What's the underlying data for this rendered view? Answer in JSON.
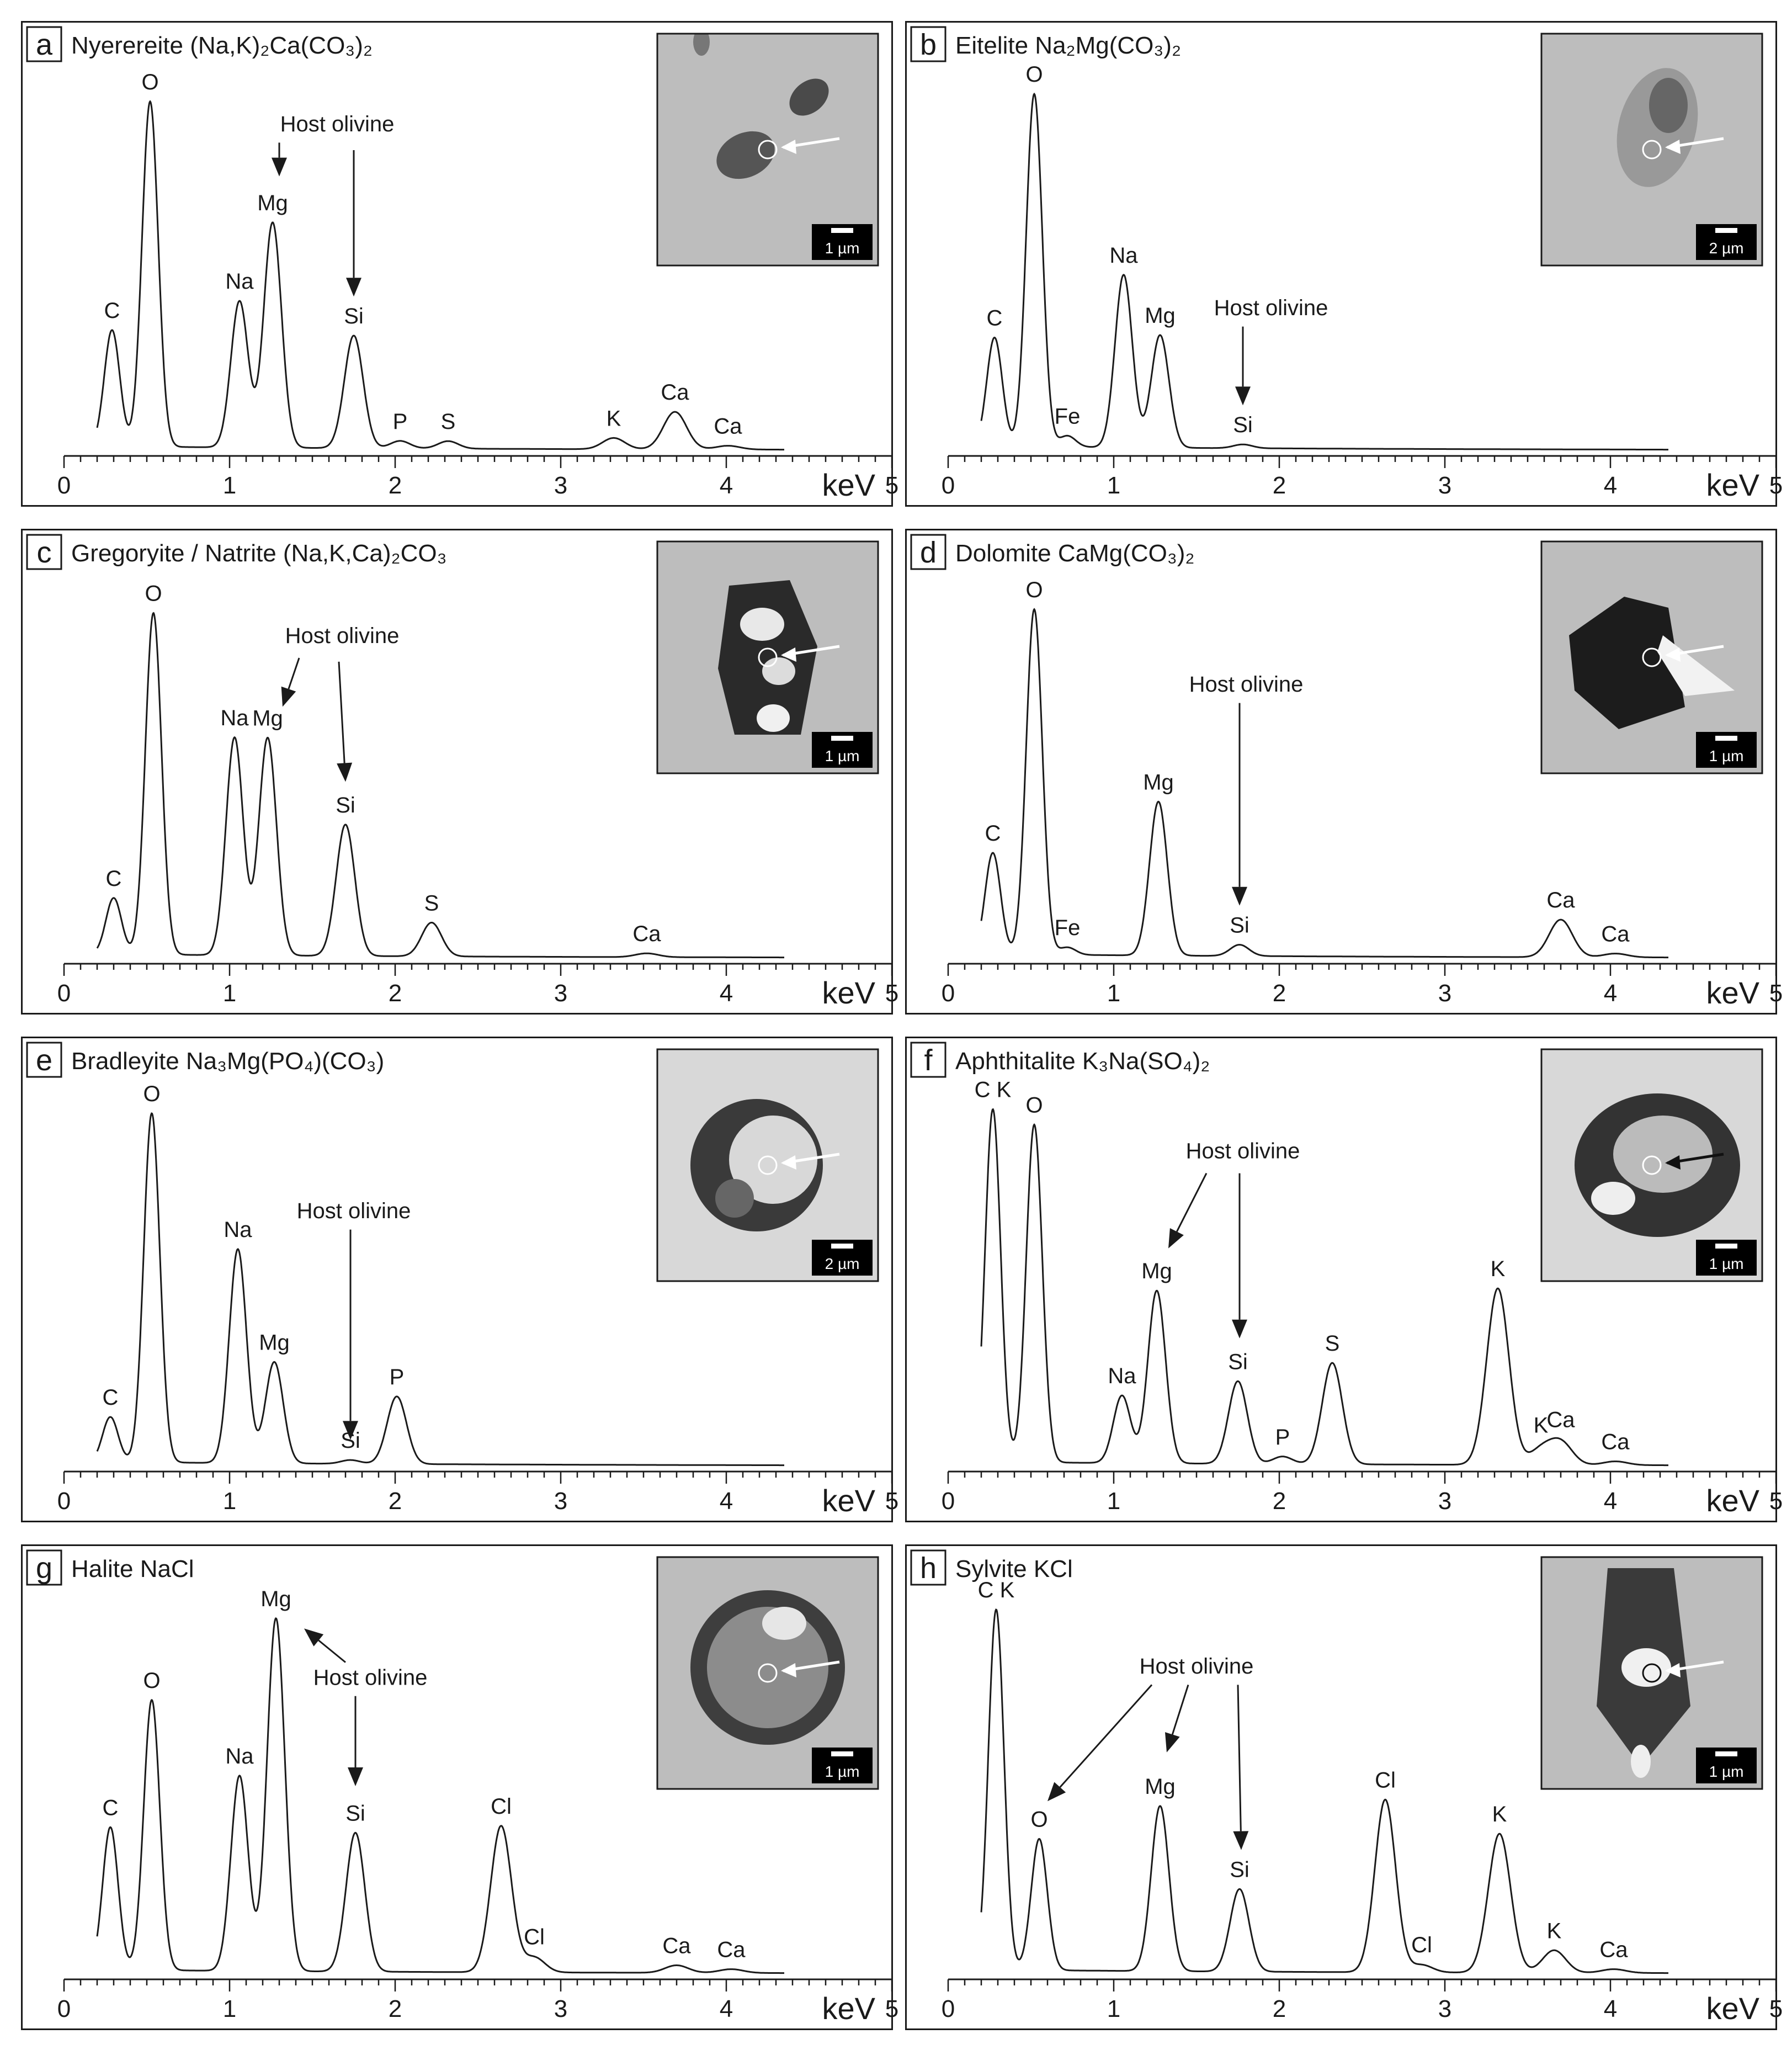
{
  "chart_data": [
    {
      "type": "line",
      "panel": "a",
      "title": "Nyerereite (Na,K)₂Ca(CO₃)₂",
      "xlabel": "keV",
      "xlim": [
        0,
        5
      ],
      "xticks": [
        "0",
        "1",
        "2",
        "3",
        "4",
        "5"
      ],
      "inset_scale": "1 µm",
      "inset": {
        "type": "a"
      },
      "peaks": [
        {
          "label": "C",
          "x": 0.29,
          "h": 0.31
        },
        {
          "label": "O",
          "x": 0.52,
          "h": 0.92
        },
        {
          "label": "Na",
          "x": 1.06,
          "h": 0.39
        },
        {
          "label": "Mg",
          "x": 1.26,
          "h": 0.6
        },
        {
          "label": "Si",
          "x": 1.75,
          "h": 0.3
        },
        {
          "label": "P",
          "x": 2.03,
          "h": 0.02
        },
        {
          "label": "S",
          "x": 2.32,
          "h": 0.02
        },
        {
          "label": "K",
          "x": 3.32,
          "h": 0.03
        },
        {
          "label": "Ca",
          "x": 3.69,
          "h": 0.1
        },
        {
          "label": "Ca",
          "x": 4.01,
          "h": 0.01
        }
      ],
      "annotations": [
        {
          "text": "Host olivine",
          "x": 1.65,
          "h": 0.85,
          "arrows": [
            [
              1.3,
              0.82,
              1.3,
              0.73
            ],
            [
              1.75,
              0.8,
              1.75,
              0.41
            ]
          ]
        }
      ]
    },
    {
      "type": "line",
      "panel": "b",
      "title": "Eitelite Na₂Mg(CO₃)₂",
      "xlabel": "keV",
      "xlim": [
        0,
        5
      ],
      "xticks": [
        "0",
        "1",
        "2",
        "3",
        "4",
        "5"
      ],
      "inset_scale": "2 µm",
      "inset": {
        "type": "b"
      },
      "peaks": [
        {
          "label": "C",
          "x": 0.28,
          "h": 0.29
        },
        {
          "label": "O",
          "x": 0.52,
          "h": 0.94
        },
        {
          "label": "Fe",
          "x": 0.72,
          "h": 0.03
        },
        {
          "label": "Na",
          "x": 1.06,
          "h": 0.46
        },
        {
          "label": "Mg",
          "x": 1.28,
          "h": 0.3
        },
        {
          "label": "Si",
          "x": 1.78,
          "h": 0.01
        }
      ],
      "annotations": [
        {
          "text": "Host olivine",
          "x": 1.95,
          "h": 0.36,
          "arrows": [
            [
              1.78,
              0.33,
              1.78,
              0.12
            ]
          ]
        }
      ]
    },
    {
      "type": "line",
      "panel": "c",
      "title": "Gregoryite / Natrite (Na,K,Ca)₂CO₃",
      "xlabel": "keV",
      "xlim": [
        0,
        5
      ],
      "xticks": [
        "0",
        "1",
        "2",
        "3",
        "4",
        "5"
      ],
      "inset_scale": "1 µm",
      "inset": {
        "type": "c"
      },
      "peaks": [
        {
          "label": "C",
          "x": 0.3,
          "h": 0.15
        },
        {
          "label": "O",
          "x": 0.54,
          "h": 0.91
        },
        {
          "label": "Na",
          "x": 1.03,
          "h": 0.58
        },
        {
          "label": "Mg",
          "x": 1.23,
          "h": 0.58
        },
        {
          "label": "Si",
          "x": 1.7,
          "h": 0.35
        },
        {
          "label": "S",
          "x": 2.22,
          "h": 0.09
        },
        {
          "label": "Ca",
          "x": 3.52,
          "h": 0.01
        }
      ],
      "annotations": [
        {
          "text": "Host olivine",
          "x": 1.68,
          "h": 0.84,
          "arrows": [
            [
              1.42,
              0.8,
              1.32,
              0.67
            ],
            [
              1.66,
              0.79,
              1.7,
              0.47
            ]
          ]
        }
      ]
    },
    {
      "type": "line",
      "panel": "d",
      "title": "Dolomite CaMg(CO₃)₂",
      "xlabel": "keV",
      "xlim": [
        0,
        5
      ],
      "xticks": [
        "0",
        "1",
        "2",
        "3",
        "4",
        "5"
      ],
      "inset_scale": "1 µm",
      "inset": {
        "type": "d"
      },
      "peaks": [
        {
          "label": "C",
          "x": 0.27,
          "h": 0.27
        },
        {
          "label": "O",
          "x": 0.52,
          "h": 0.92
        },
        {
          "label": "Fe",
          "x": 0.72,
          "h": 0.02
        },
        {
          "label": "Mg",
          "x": 1.27,
          "h": 0.41
        },
        {
          "label": "Si",
          "x": 1.76,
          "h": 0.03
        },
        {
          "label": "Ca",
          "x": 3.7,
          "h": 0.1
        },
        {
          "label": "Ca",
          "x": 4.03,
          "h": 0.01
        }
      ],
      "annotations": [
        {
          "text": "Host olivine",
          "x": 1.8,
          "h": 0.71,
          "arrows": [
            [
              1.76,
              0.68,
              1.76,
              0.14
            ]
          ]
        }
      ]
    },
    {
      "type": "line",
      "panel": "e",
      "title": "Bradleyite Na₃Mg(PO₄)(CO₃)",
      "xlabel": "keV",
      "xlim": [
        0,
        5
      ],
      "xticks": [
        "0",
        "1",
        "2",
        "3",
        "4",
        "5"
      ],
      "inset_scale": "2 µm",
      "inset": {
        "type": "e"
      },
      "peaks": [
        {
          "label": "C",
          "x": 0.28,
          "h": 0.12
        },
        {
          "label": "O",
          "x": 0.53,
          "h": 0.93
        },
        {
          "label": "Na",
          "x": 1.05,
          "h": 0.57
        },
        {
          "label": "Mg",
          "x": 1.27,
          "h": 0.27
        },
        {
          "label": "Si",
          "x": 1.73,
          "h": 0.01
        },
        {
          "label": "P",
          "x": 2.01,
          "h": 0.18
        }
      ],
      "annotations": [
        {
          "text": "Host olivine",
          "x": 1.75,
          "h": 0.66,
          "arrows": [
            [
              1.73,
              0.63,
              1.73,
              0.07
            ]
          ]
        }
      ]
    },
    {
      "type": "line",
      "panel": "f",
      "title": "Aphthitalite K₃Na(SO₄)₂",
      "xlabel": "keV",
      "xlim": [
        0,
        5
      ],
      "xticks": [
        "0",
        "1",
        "2",
        "3",
        "4",
        "5"
      ],
      "inset_scale": "1 µm",
      "inset": {
        "type": "f"
      },
      "peaks": [
        {
          "label": "C K",
          "x": 0.27,
          "h": 0.94
        },
        {
          "label": "O",
          "x": 0.52,
          "h": 0.9
        },
        {
          "label": "Na",
          "x": 1.05,
          "h": 0.18
        },
        {
          "label": "Mg",
          "x": 1.26,
          "h": 0.46
        },
        {
          "label": "Si",
          "x": 1.75,
          "h": 0.22
        },
        {
          "label": "P",
          "x": 2.02,
          "h": 0.02
        },
        {
          "label": "S",
          "x": 2.32,
          "h": 0.27
        },
        {
          "label": "K",
          "x": 3.32,
          "h": 0.47
        },
        {
          "label": "K",
          "x": 3.58,
          "h": 0.04
        },
        {
          "label": "Ca",
          "x": 3.7,
          "h": 0.06
        },
        {
          "label": "Ca",
          "x": 4.03,
          "h": 0.01
        }
      ],
      "annotations": [
        {
          "text": "Host olivine",
          "x": 1.78,
          "h": 0.82,
          "arrows": [
            [
              1.56,
              0.78,
              1.33,
              0.58
            ],
            [
              1.76,
              0.78,
              1.76,
              0.34
            ]
          ]
        }
      ]
    },
    {
      "type": "line",
      "panel": "g",
      "title": "Halite NaCl",
      "xlabel": "keV",
      "xlim": [
        0,
        5
      ],
      "xticks": [
        "0",
        "1",
        "2",
        "3",
        "4",
        "5"
      ],
      "inset_scale": "1 µm",
      "inset": {
        "type": "g"
      },
      "peaks": [
        {
          "label": "C",
          "x": 0.28,
          "h": 0.38
        },
        {
          "label": "O",
          "x": 0.53,
          "h": 0.72
        },
        {
          "label": "Na",
          "x": 1.06,
          "h": 0.52
        },
        {
          "label": "Mg",
          "x": 1.28,
          "h": 0.94
        },
        {
          "label": "Si",
          "x": 1.76,
          "h": 0.37
        },
        {
          "label": "Cl",
          "x": 2.64,
          "h": 0.39
        },
        {
          "label": "Cl",
          "x": 2.84,
          "h": 0.04
        },
        {
          "label": "Ca",
          "x": 3.7,
          "h": 0.02
        },
        {
          "label": "Ca",
          "x": 4.03,
          "h": 0.01
        }
      ],
      "annotations": [
        {
          "text": "Host olivine",
          "x": 1.85,
          "h": 0.77,
          "arrows": [
            [
              1.7,
              0.83,
              1.45,
              0.92
            ],
            [
              1.76,
              0.74,
              1.76,
              0.5
            ]
          ]
        }
      ]
    },
    {
      "type": "line",
      "panel": "h",
      "title": "Sylvite KCl",
      "xlabel": "keV",
      "xlim": [
        0,
        5
      ],
      "xticks": [
        "0",
        "1",
        "2",
        "3",
        "4",
        "5"
      ],
      "inset_scale": "1 µm",
      "inset": {
        "type": "h"
      },
      "peaks": [
        {
          "label": "C K",
          "x": 0.29,
          "h": 0.96
        },
        {
          "label": "O",
          "x": 0.55,
          "h": 0.35
        },
        {
          "label": "Mg",
          "x": 1.28,
          "h": 0.44
        },
        {
          "label": "Si",
          "x": 1.76,
          "h": 0.22
        },
        {
          "label": "Cl",
          "x": 2.64,
          "h": 0.46
        },
        {
          "label": "Cl",
          "x": 2.86,
          "h": 0.02
        },
        {
          "label": "K",
          "x": 3.33,
          "h": 0.37
        },
        {
          "label": "K",
          "x": 3.66,
          "h": 0.06
        },
        {
          "label": "Ca",
          "x": 4.02,
          "h": 0.01
        }
      ],
      "annotations": [
        {
          "text": "Host olivine",
          "x": 1.5,
          "h": 0.8,
          "arrows": [
            [
              1.23,
              0.77,
              0.6,
              0.46
            ],
            [
              1.45,
              0.77,
              1.32,
              0.59
            ],
            [
              1.75,
              0.77,
              1.77,
              0.33
            ]
          ]
        }
      ]
    }
  ]
}
